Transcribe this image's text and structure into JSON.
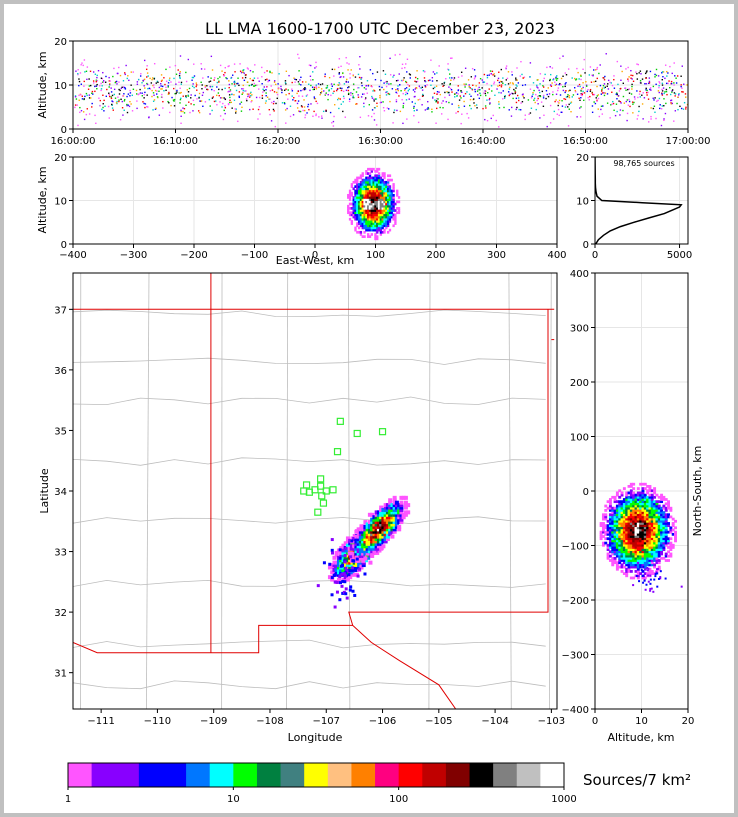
{
  "chart_data": [
    {
      "type": "scatter",
      "panel": "altitude-time",
      "title": "LL LMA 1600-1700 UTC December 23, 2023",
      "ylabel": "Altitude, km",
      "xlabel": "",
      "xticks": [
        "16:00:00",
        "16:10:00",
        "16:20:00",
        "16:30:00",
        "16:40:00",
        "16:50:00",
        "17:00:00"
      ],
      "yticks": [
        0,
        10,
        20
      ],
      "ylim": [
        0,
        20
      ],
      "grid": true
    },
    {
      "type": "heatmap",
      "panel": "altitude-eastwest",
      "ylabel": "Altitude, km",
      "xlabel": "East-West, km",
      "xticks": [
        -400,
        -300,
        -200,
        -100,
        0,
        100,
        200,
        300,
        400
      ],
      "yticks": [
        0,
        10,
        20
      ],
      "xlim": [
        -400,
        400
      ],
      "ylim": [
        0,
        20
      ],
      "center_x": 95,
      "center_alt": 9,
      "grid": true
    },
    {
      "type": "line",
      "panel": "altitude-histogram",
      "annotation": "98,765 sources",
      "xticks": [
        0,
        5000
      ],
      "yticks": [
        0,
        10,
        20
      ],
      "xlim": [
        0,
        5500
      ],
      "ylim": [
        0,
        20
      ],
      "profile": {
        "alt": [
          0,
          1,
          2,
          3,
          4,
          5,
          6,
          7,
          8,
          8.5,
          9,
          9.5,
          10,
          11,
          12,
          13,
          14,
          15,
          16,
          18,
          20
        ],
        "count": [
          40,
          200,
          500,
          900,
          1500,
          2300,
          3200,
          4100,
          4700,
          5000,
          5100,
          2800,
          400,
          120,
          60,
          30,
          20,
          15,
          10,
          5,
          2
        ]
      }
    },
    {
      "type": "heatmap",
      "panel": "plan-view",
      "xlabel": "Longitude",
      "ylabel": "Latitude",
      "xticks": [
        -111,
        -110,
        -109,
        -108,
        -107,
        -106,
        -105,
        -104,
        -103
      ],
      "yticks": [
        31,
        32,
        33,
        34,
        35,
        36,
        37
      ],
      "xlim": [
        -111.5,
        -102.9
      ],
      "ylim": [
        30.4,
        37.6
      ],
      "stations": [
        {
          "lon": -106.75,
          "lat": 35.15
        },
        {
          "lon": -106.45,
          "lat": 34.95
        },
        {
          "lon": -106.0,
          "lat": 34.98
        },
        {
          "lon": -106.8,
          "lat": 34.65
        },
        {
          "lon": -107.1,
          "lat": 34.2
        },
        {
          "lon": -107.35,
          "lat": 34.1
        },
        {
          "lon": -107.1,
          "lat": 34.08
        },
        {
          "lon": -107.4,
          "lat": 34.0
        },
        {
          "lon": -107.3,
          "lat": 33.98
        },
        {
          "lon": -107.2,
          "lat": 34.02
        },
        {
          "lon": -107.0,
          "lat": 34.0
        },
        {
          "lon": -106.88,
          "lat": 34.02
        },
        {
          "lon": -107.08,
          "lat": 33.92
        },
        {
          "lon": -107.05,
          "lat": 33.8
        },
        {
          "lon": -107.15,
          "lat": 33.65
        }
      ],
      "storm_cores": [
        {
          "lon": -106.45,
          "lat": 33.05
        },
        {
          "lon": -106.1,
          "lat": 33.4
        }
      ]
    },
    {
      "type": "heatmap",
      "panel": "northsouth-altitude",
      "xlabel": "Altitude, km",
      "ylabel": "North-South, km",
      "xticks": [
        0,
        10,
        20
      ],
      "yticks": [
        -400,
        -300,
        -200,
        -100,
        0,
        100,
        200,
        300,
        400
      ],
      "xlim": [
        0,
        20
      ],
      "ylim": [
        -400,
        400
      ],
      "center_alt": 9,
      "center_ns": -75
    }
  ],
  "colorbar": {
    "label": "Sources/7 km²",
    "tick_labels": [
      "1",
      "10",
      "100",
      "1000"
    ],
    "colors": [
      "#ff55ff",
      "#8800ff",
      "#8800ff",
      "#0000ff",
      "#0000ff",
      "#0077ff",
      "#00ffff",
      "#00ff00",
      "#008040",
      "#408080",
      "#ffff00",
      "#ffc080",
      "#ff8000",
      "#ff0080",
      "#ff0000",
      "#c00000",
      "#800000",
      "#000000",
      "#808080",
      "#c0c0c0",
      "#ffffff"
    ]
  },
  "heat_colors": [
    "#ff55ff",
    "#8800ff",
    "#0000ff",
    "#0077ff",
    "#00ffff",
    "#00ff00",
    "#008040",
    "#ffff00",
    "#ff8000",
    "#ff0000",
    "#c00000",
    "#800000",
    "#000000",
    "#808080",
    "#ffffff"
  ]
}
